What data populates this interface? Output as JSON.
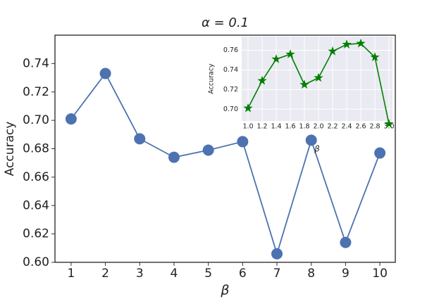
{
  "chart_data": [
    {
      "type": "line",
      "title": "α = 0.1",
      "xlabel": "β",
      "ylabel": "Accuracy",
      "x": [
        1,
        2,
        3,
        4,
        5,
        6,
        7,
        8,
        9,
        10
      ],
      "values": [
        0.701,
        0.733,
        0.687,
        0.674,
        0.679,
        0.685,
        0.606,
        0.686,
        0.614,
        0.677
      ],
      "color": "#4c72b0",
      "marker": "circle",
      "grid": false,
      "facecolor": "#ffffff",
      "xlim": [
        0.53,
        10.45
      ],
      "ylim": [
        0.6,
        0.76
      ],
      "xticks": [
        1,
        2,
        3,
        4,
        5,
        6,
        7,
        8,
        9,
        10
      ],
      "yticks": [
        {
          "value": 0.6,
          "label": "0.60"
        },
        0.62,
        0.64,
        0.66,
        0.68,
        {
          "value": 0.7,
          "label": "0.70"
        },
        0.72,
        0.74
      ]
    },
    {
      "type": "line",
      "xlabel": "β",
      "ylabel": "Accuracy",
      "x": [
        1.0,
        1.2,
        1.4,
        1.6,
        1.8,
        2.0,
        2.2,
        2.4,
        2.6,
        2.8,
        3.0
      ],
      "values": [
        0.701,
        0.729,
        0.751,
        0.756,
        0.725,
        0.732,
        0.759,
        0.766,
        0.767,
        0.753,
        0.685
      ],
      "color": "#008000",
      "marker": "star",
      "grid": true,
      "facecolor": "#eaeaf2",
      "xlim": [
        0.91,
        3.05
      ],
      "ylim": [
        0.688,
        0.774
      ],
      "xticks": [
        {
          "value": 1.0,
          "label": "1.0"
        },
        1.2,
        1.4,
        1.6,
        1.8,
        {
          "value": 2.0,
          "label": "2.0"
        },
        2.2,
        2.4,
        2.6,
        2.8,
        {
          "value": 3.0,
          "label": "3.0"
        }
      ],
      "yticks": [
        {
          "value": 0.7,
          "label": "0.70"
        },
        0.72,
        0.74,
        0.76
      ]
    }
  ]
}
